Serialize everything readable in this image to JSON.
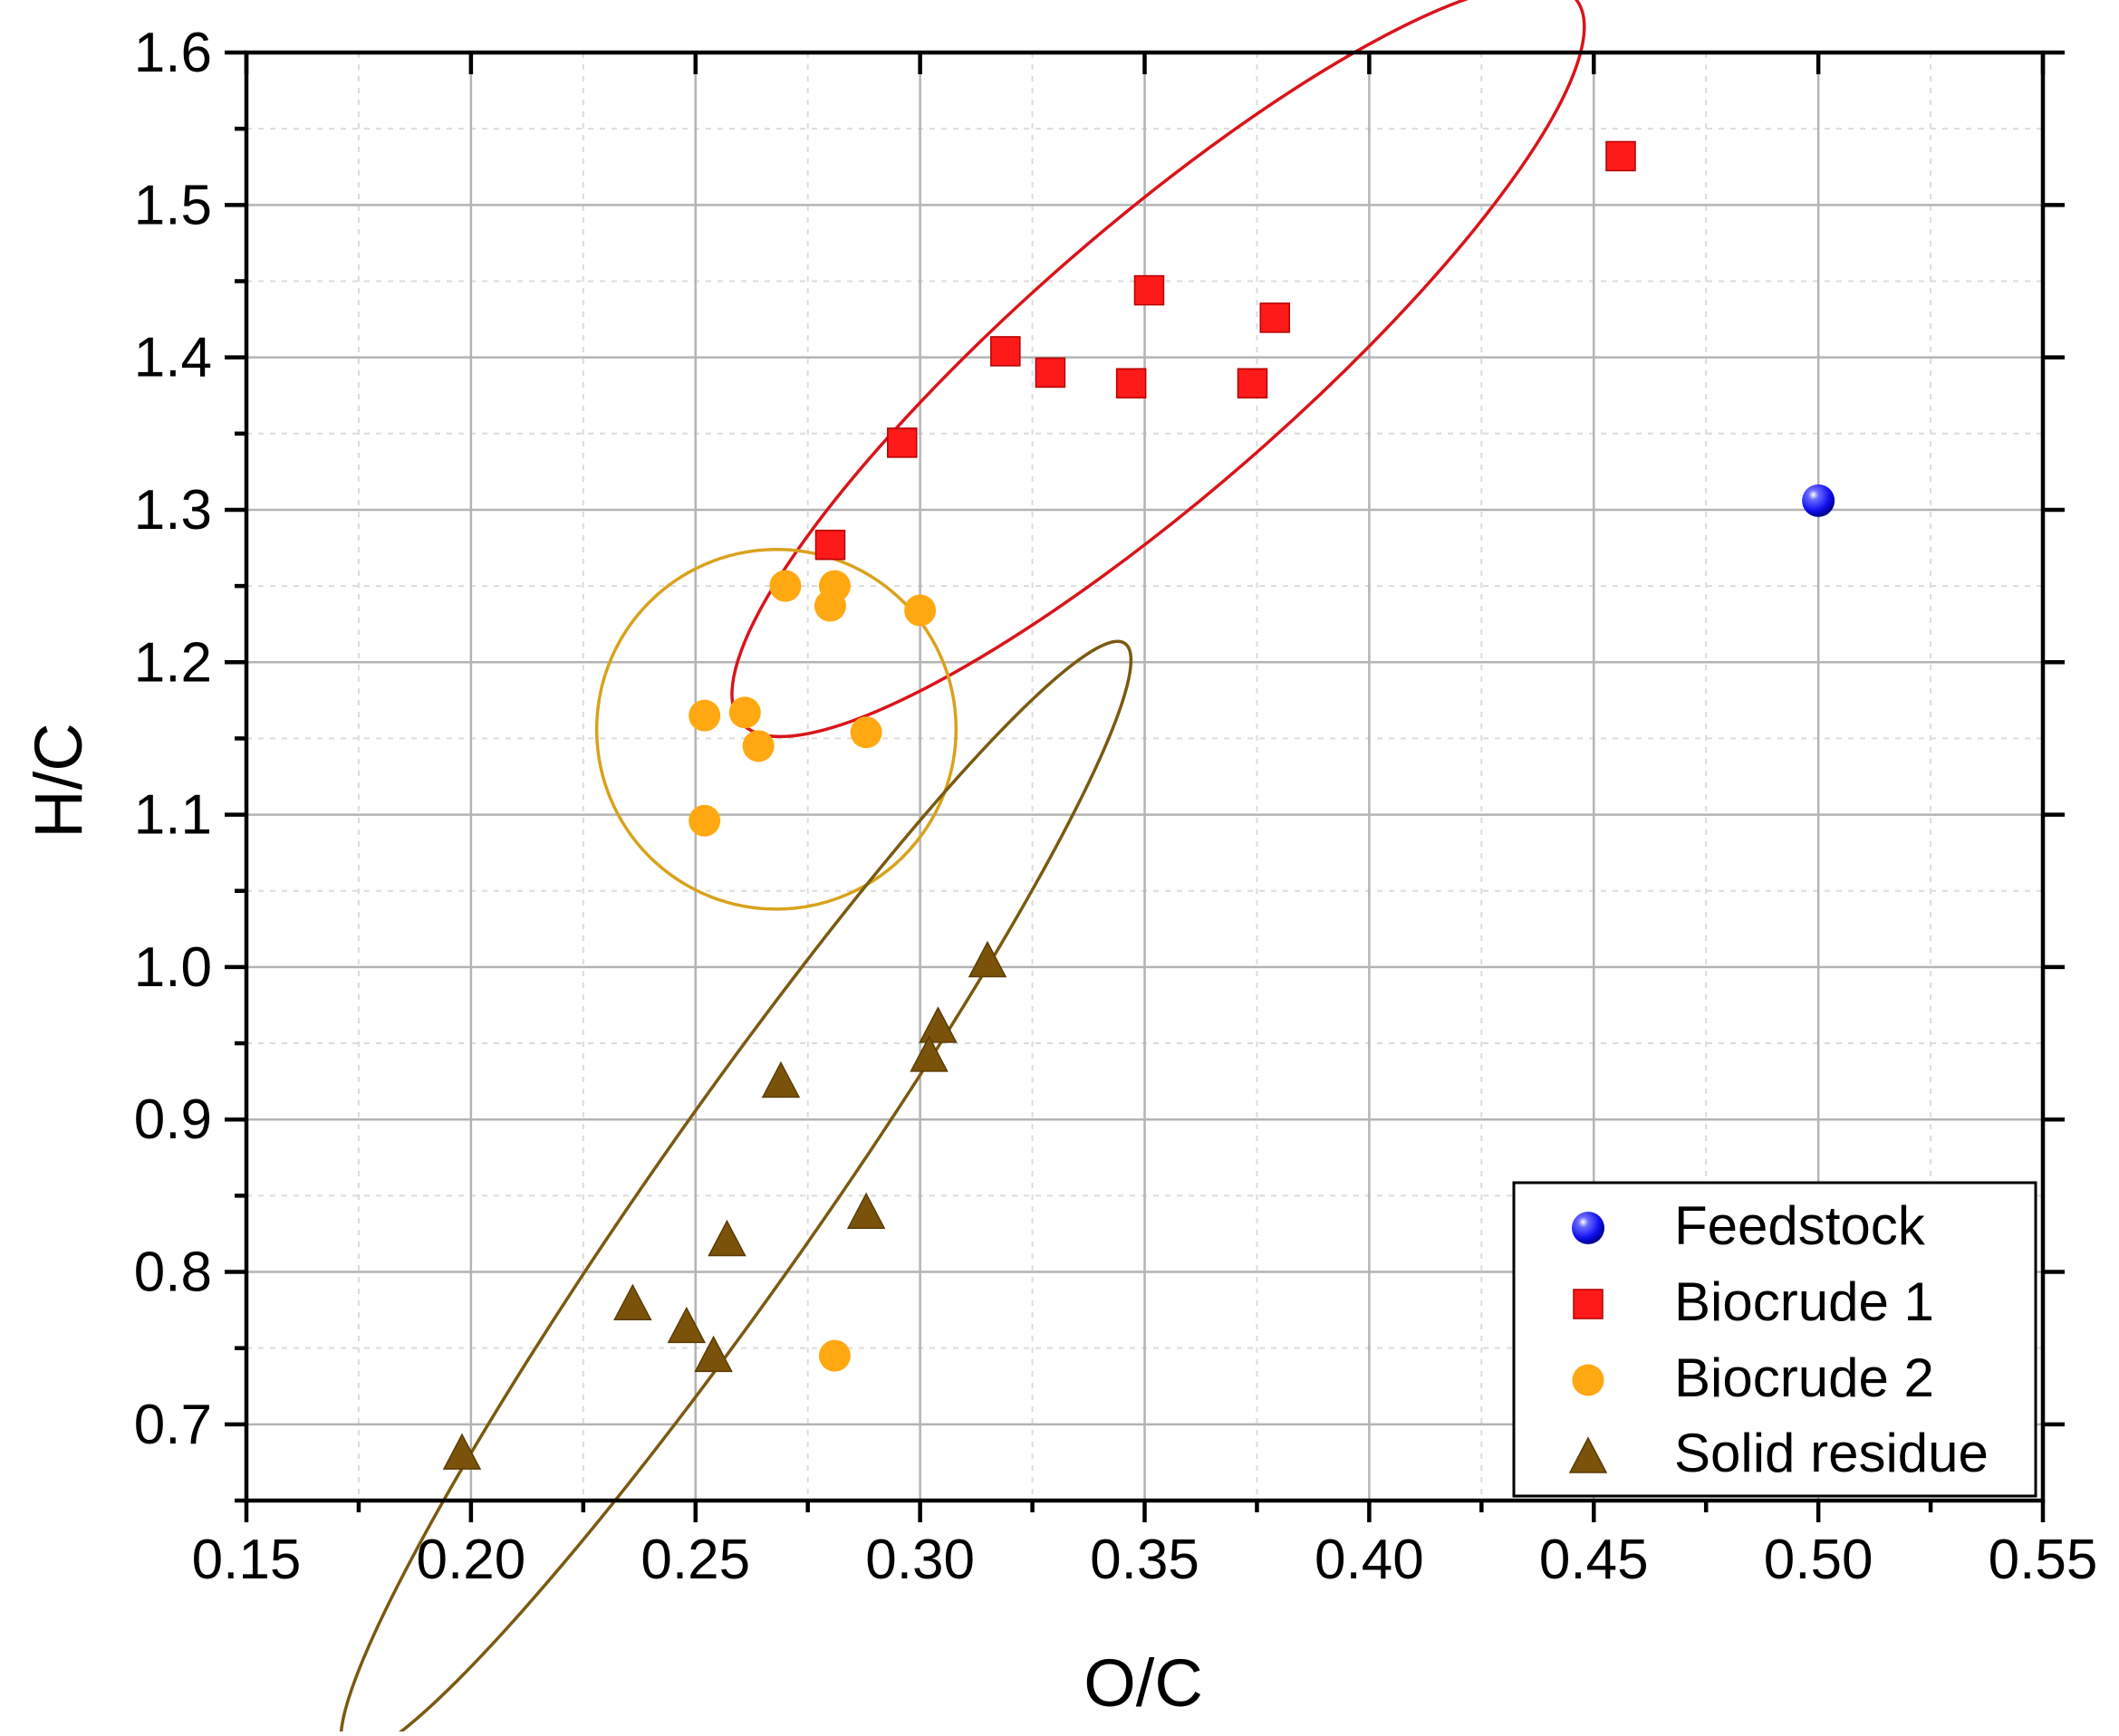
{
  "chart_data": {
    "type": "scatter",
    "title": "",
    "xlabel": "O/C",
    "ylabel": "H/C",
    "xlim": [
      0.15,
      0.55
    ],
    "ylim": [
      0.65,
      1.6
    ],
    "x_major_step": 0.05,
    "y_major_step": 0.1,
    "grid": "on",
    "x_ticks": [
      "0.15",
      "0.20",
      "0.25",
      "0.30",
      "0.35",
      "0.40",
      "0.45",
      "0.50",
      "0.55"
    ],
    "y_ticks": [
      "0.7",
      "0.8",
      "0.9",
      "1.0",
      "1.1",
      "1.2",
      "1.3",
      "1.4",
      "1.5",
      "1.6"
    ],
    "legend_position": "bottom-right",
    "series": [
      {
        "name": "Feedstock",
        "marker": "sphere",
        "color": "#1f1fff",
        "points": [
          [
            0.5,
            1.306
          ]
        ]
      },
      {
        "name": "Biocrude 1",
        "marker": "square",
        "color": "#ff1a1a",
        "points": [
          [
            0.296,
            1.344
          ],
          [
            0.319,
            1.404
          ],
          [
            0.329,
            1.39
          ],
          [
            0.347,
            1.383
          ],
          [
            0.351,
            1.444
          ],
          [
            0.374,
            1.383
          ],
          [
            0.379,
            1.426
          ],
          [
            0.456,
            1.532
          ],
          [
            0.28,
            1.277
          ]
        ]
      },
      {
        "name": "Biocrude 2",
        "marker": "circle",
        "color": "#ffa812",
        "points": [
          [
            0.27,
            1.25
          ],
          [
            0.281,
            1.25
          ],
          [
            0.28,
            1.237
          ],
          [
            0.3,
            1.234
          ],
          [
            0.252,
            1.165
          ],
          [
            0.261,
            1.167
          ],
          [
            0.264,
            1.145
          ],
          [
            0.288,
            1.154
          ],
          [
            0.252,
            1.096
          ],
          [
            0.281,
            0.745
          ]
        ]
      },
      {
        "name": "Solid residue",
        "marker": "triangle",
        "color": "#7a5209",
        "points": [
          [
            0.315,
            1.005
          ],
          [
            0.304,
            0.962
          ],
          [
            0.302,
            0.943
          ],
          [
            0.269,
            0.926
          ],
          [
            0.288,
            0.84
          ],
          [
            0.257,
            0.822
          ],
          [
            0.236,
            0.78
          ],
          [
            0.248,
            0.765
          ],
          [
            0.254,
            0.746
          ],
          [
            0.198,
            0.682
          ]
        ]
      }
    ],
    "annotations": [
      {
        "type": "ellipse",
        "group": "Biocrude 1",
        "color": "#d9141a",
        "center": [
          0.353,
          1.398
        ],
        "semi_axes": [
          0.123,
          0.088
        ],
        "rotation_deg": -41
      },
      {
        "type": "ellipse",
        "group": "Biocrude 2",
        "color": "#d9a21c",
        "center": [
          0.268,
          1.156
        ],
        "semi_axes": [
          0.04,
          0.118
        ],
        "rotation_deg": 21
      },
      {
        "type": "ellipse",
        "group": "Solid residue",
        "color": "#7a5a10",
        "center": [
          0.259,
          0.848
        ],
        "semi_axes": [
          0.151,
          0.055
        ],
        "rotation_deg": -55
      }
    ]
  }
}
